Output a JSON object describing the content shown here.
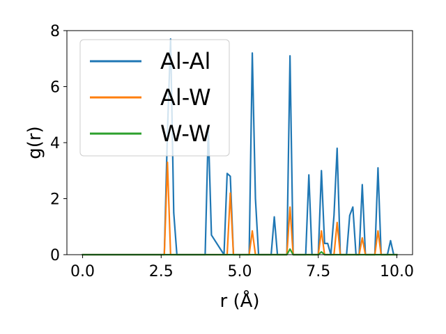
{
  "chart_data": {
    "type": "line",
    "title": "",
    "xlabel": "r (Å)",
    "ylabel": "g(r)",
    "xlim": [
      -0.5,
      10.5
    ],
    "ylim": [
      0,
      8
    ],
    "xticks": [
      0.0,
      2.5,
      5.0,
      7.5,
      10.0
    ],
    "xtick_labels": [
      "0.0",
      "2.5",
      "5.0",
      "7.5",
      "10.0"
    ],
    "yticks": [
      0,
      2,
      4,
      6,
      8
    ],
    "ytick_labels": [
      "0",
      "2",
      "4",
      "6",
      "8"
    ],
    "legend_position": "upper-left",
    "series": [
      {
        "name": "Al-Al",
        "color": "#1f77b4",
        "x": [
          0.0,
          2.6,
          2.7,
          2.8,
          2.9,
          3.0,
          3.9,
          4.0,
          4.1,
          4.5,
          4.6,
          4.7,
          4.8,
          5.3,
          5.4,
          5.5,
          5.6,
          6.0,
          6.1,
          6.2,
          6.5,
          6.6,
          6.7,
          7.1,
          7.2,
          7.3,
          7.5,
          7.6,
          7.7,
          7.8,
          7.9,
          8.0,
          8.1,
          8.2,
          8.4,
          8.5,
          8.6,
          8.7,
          8.8,
          8.9,
          9.0,
          9.3,
          9.4,
          9.5,
          9.7,
          9.8,
          9.9,
          10.0
        ],
        "y": [
          0,
          0,
          4.4,
          7.7,
          1.5,
          0,
          0,
          4.5,
          0.7,
          0,
          2.9,
          2.8,
          0,
          0,
          7.2,
          2.0,
          0,
          0,
          1.35,
          0,
          0,
          7.1,
          0,
          0,
          2.85,
          0,
          0,
          3.0,
          0.4,
          0.4,
          0,
          1.4,
          3.8,
          0,
          0,
          1.4,
          1.7,
          0,
          0,
          2.5,
          0,
          0,
          3.1,
          0,
          0,
          0.5,
          0,
          0
        ]
      },
      {
        "name": "Al-W",
        "color": "#ff7f0e",
        "x": [
          0.0,
          2.6,
          2.7,
          2.8,
          4.6,
          4.7,
          4.8,
          5.3,
          5.4,
          5.5,
          6.5,
          6.6,
          6.7,
          7.5,
          7.6,
          7.7,
          8.0,
          8.1,
          8.2,
          8.8,
          8.9,
          9.0,
          9.3,
          9.4,
          9.5,
          10.0
        ],
        "y": [
          0,
          0,
          3.3,
          0,
          0,
          2.2,
          0,
          0,
          0.85,
          0,
          0,
          1.7,
          0,
          0,
          0.85,
          0,
          0,
          1.15,
          0,
          0,
          0.6,
          0,
          0,
          0.85,
          0,
          0
        ]
      },
      {
        "name": "W-W",
        "color": "#2ca02c",
        "x": [
          0.0,
          6.5,
          6.6,
          6.7,
          7.5,
          7.6,
          7.7,
          10.0
        ],
        "y": [
          0,
          0,
          0.2,
          0,
          0,
          0.1,
          0,
          0
        ]
      }
    ]
  }
}
